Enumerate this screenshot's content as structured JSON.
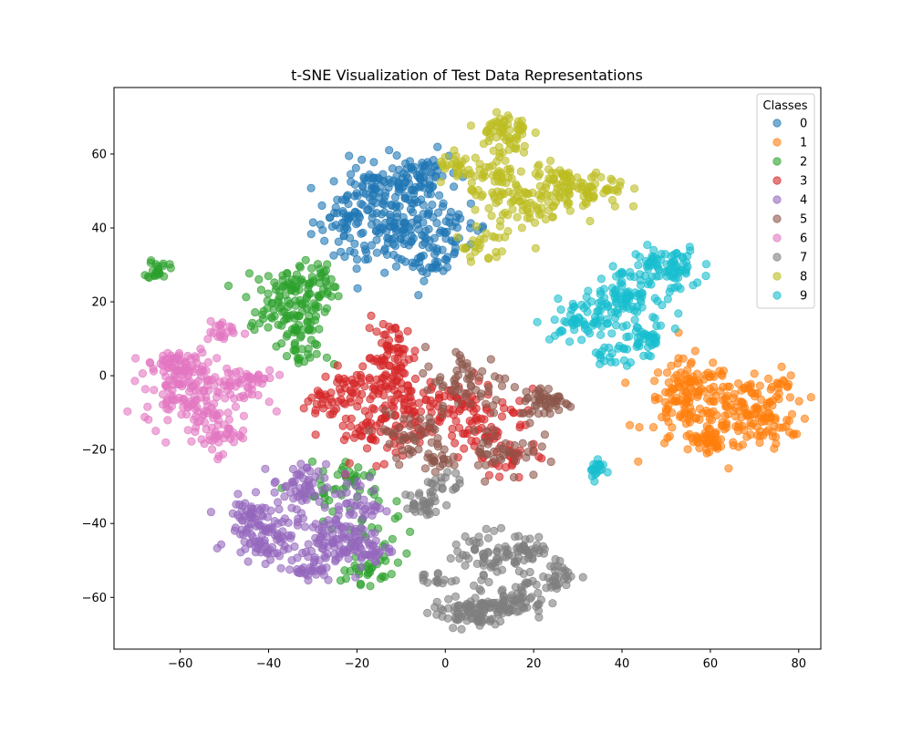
{
  "chart_data": {
    "type": "scatter",
    "title": "t-SNE Visualization of Test Data Representations",
    "xlabel": "",
    "ylabel": "",
    "xlim": [
      -75,
      85
    ],
    "ylim": [
      -74,
      78
    ],
    "xticks": [
      -60,
      -40,
      -20,
      0,
      20,
      40,
      60,
      80
    ],
    "yticks": [
      -60,
      -40,
      -20,
      0,
      20,
      40,
      60
    ],
    "xtick_labels": [
      "−60",
      "−40",
      "−20",
      "0",
      "20",
      "40",
      "60",
      "80"
    ],
    "ytick_labels": [
      "−60",
      "−40",
      "−20",
      "0",
      "20",
      "40",
      "60"
    ],
    "grid": false,
    "legend": {
      "title": "Classes",
      "placement": "top-right"
    },
    "marker_alpha": 0.6,
    "series": [
      {
        "name": "0",
        "color": "#1f77b4",
        "clusters": [
          [
            -18,
            42,
            6,
            7,
            90
          ],
          [
            -8,
            48,
            4,
            6,
            60
          ],
          [
            -5,
            55,
            4,
            3,
            45
          ],
          [
            -16,
            51,
            3,
            3,
            35
          ],
          [
            -3,
            32,
            3,
            3,
            40
          ],
          [
            2,
            40,
            4,
            3,
            35
          ],
          [
            -12,
            37,
            4,
            3,
            40
          ],
          [
            -22,
            43,
            2,
            3,
            20
          ]
        ]
      },
      {
        "name": "1",
        "color": "#ff7f0e",
        "clusters": [
          [
            55,
            -8,
            5,
            6,
            110
          ],
          [
            67,
            -9,
            5,
            4,
            80
          ],
          [
            72,
            -13,
            4,
            3,
            50
          ],
          [
            60,
            -18,
            3,
            2,
            40
          ],
          [
            56,
            -2,
            3,
            3,
            30
          ],
          [
            75,
            -3,
            2,
            3,
            20
          ]
        ]
      },
      {
        "name": "2",
        "color": "#2ca02c",
        "clusters": [
          [
            -65,
            29,
            1.2,
            1.5,
            22
          ],
          [
            -36,
            20,
            5,
            4,
            80
          ],
          [
            -31,
            26,
            3,
            3,
            40
          ],
          [
            -35,
            13,
            4,
            3,
            35
          ],
          [
            -32,
            5,
            3,
            2,
            20
          ],
          [
            -20,
            -28,
            3,
            3,
            25
          ],
          [
            -18,
            -53,
            2,
            1.5,
            20
          ],
          [
            -16,
            -44,
            5,
            6,
            30
          ],
          [
            -28,
            -32,
            3,
            4,
            20
          ]
        ]
      },
      {
        "name": "3",
        "color": "#d62728",
        "clusters": [
          [
            -12,
            5,
            3,
            5,
            70
          ],
          [
            -8,
            -8,
            4,
            4,
            60
          ],
          [
            -15,
            -15,
            6,
            4,
            60
          ],
          [
            -20,
            -4,
            4,
            3,
            50
          ],
          [
            10,
            -15,
            6,
            5,
            60
          ],
          [
            3,
            -8,
            4,
            3,
            40
          ],
          [
            -28,
            -8,
            3,
            3,
            20
          ],
          [
            15,
            -22,
            3,
            2,
            20
          ]
        ]
      },
      {
        "name": "4",
        "color": "#9467bd",
        "clusters": [
          [
            -41,
            -42,
            4,
            4,
            100
          ],
          [
            -27,
            -46,
            4,
            4,
            90
          ],
          [
            -33,
            -30,
            3,
            3,
            50
          ],
          [
            -20,
            -35,
            3,
            4,
            45
          ],
          [
            -18,
            -47,
            3,
            2,
            35
          ],
          [
            -30,
            -53,
            2,
            1,
            20
          ],
          [
            -45,
            -37,
            2,
            2,
            20
          ]
        ]
      },
      {
        "name": "5",
        "color": "#8c564b",
        "clusters": [
          [
            5,
            -2,
            5,
            5,
            60
          ],
          [
            23,
            -7,
            3,
            2,
            50
          ],
          [
            13,
            -20,
            4,
            4,
            40
          ],
          [
            -8,
            -16,
            4,
            3,
            40
          ],
          [
            -2,
            -23,
            3,
            2,
            20
          ]
        ]
      },
      {
        "name": "6",
        "color": "#e377c2",
        "clusters": [
          [
            -58,
            -3,
            5,
            5,
            150
          ],
          [
            -52,
            -15,
            3,
            3,
            50
          ],
          [
            -51,
            12,
            2,
            1.5,
            20
          ],
          [
            -45,
            -2,
            3,
            3,
            40
          ],
          [
            -62,
            3,
            2,
            2,
            30
          ]
        ]
      },
      {
        "name": "7",
        "color": "#7f7f7f",
        "clusters": [
          [
            5,
            -64,
            4,
            2,
            80
          ],
          [
            14,
            -62,
            3,
            2,
            50
          ],
          [
            -2,
            -55,
            2,
            1,
            15
          ],
          [
            10,
            -48,
            4,
            3,
            60
          ],
          [
            19,
            -47,
            2,
            2,
            35
          ],
          [
            26,
            -54,
            2,
            2,
            30
          ],
          [
            -5,
            -35,
            2,
            2,
            30
          ],
          [
            -1,
            -29,
            2,
            2,
            20
          ],
          [
            17,
            -58,
            3,
            3,
            30
          ]
        ]
      },
      {
        "name": "8",
        "color": "#bcbd22",
        "clusters": [
          [
            13,
            66,
            3,
            3,
            60
          ],
          [
            18,
            47,
            4,
            4,
            70
          ],
          [
            31,
            50,
            5,
            3,
            80
          ],
          [
            12,
            53,
            3,
            3,
            40
          ],
          [
            4,
            56,
            3,
            2,
            30
          ],
          [
            8,
            35,
            3,
            3,
            25
          ],
          [
            25,
            53,
            3,
            2,
            20
          ]
        ]
      },
      {
        "name": "9",
        "color": "#17becf",
        "clusters": [
          [
            50,
            29,
            4,
            3,
            80
          ],
          [
            40,
            22,
            4,
            3,
            80
          ],
          [
            32,
            15,
            4,
            3,
            60
          ],
          [
            45,
            10,
            3,
            2,
            40
          ],
          [
            34,
            -25,
            1,
            1.5,
            20
          ],
          [
            38,
            5,
            3,
            2,
            20
          ]
        ]
      }
    ],
    "cluster_format": [
      "x_center",
      "y_center",
      "x_spread",
      "y_spread",
      "count"
    ]
  }
}
